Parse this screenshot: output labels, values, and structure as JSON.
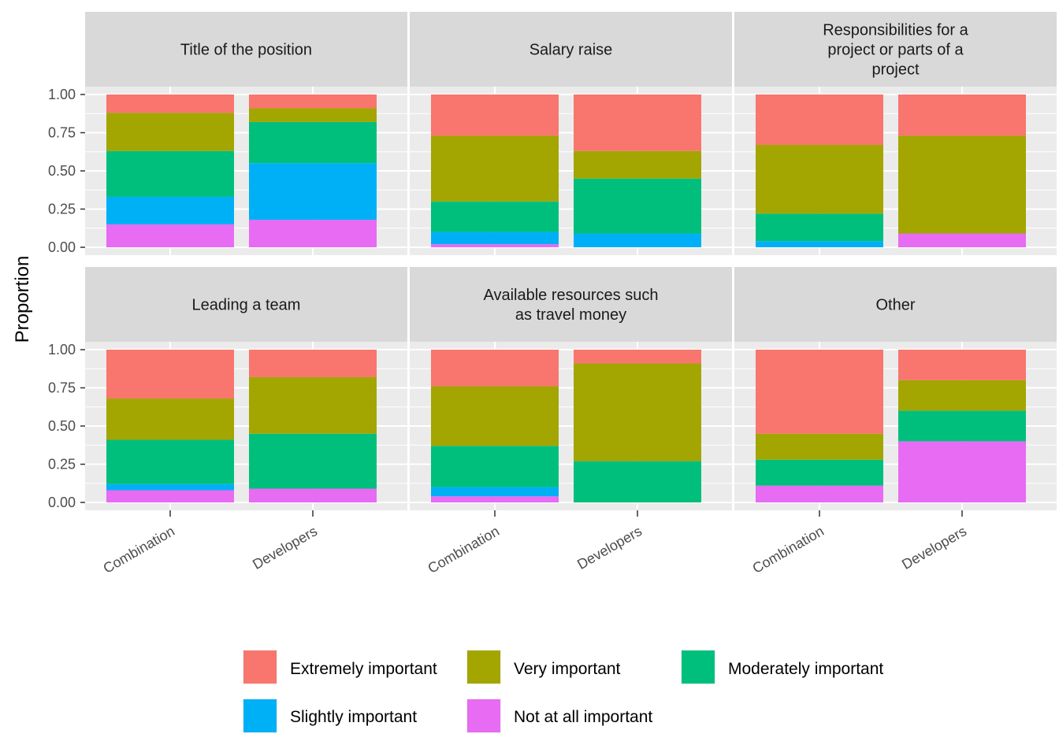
{
  "chart_data": {
    "type": "bar",
    "stacked": true,
    "ylabel": "Proportion",
    "xlabel": "",
    "ylim": [
      0,
      1
    ],
    "yticks": [
      "0.00",
      "0.25",
      "0.50",
      "0.75",
      "1.00"
    ],
    "categories": [
      "Combination",
      "Developers"
    ],
    "legend_position": "bottom",
    "legend_title": "",
    "levels": [
      {
        "name": "Extremely important",
        "color": "#F8766D"
      },
      {
        "name": "Very important",
        "color": "#A3A500"
      },
      {
        "name": "Moderately important",
        "color": "#00BF7D"
      },
      {
        "name": "Slightly important",
        "color": "#00B0F6"
      },
      {
        "name": "Not at all important",
        "color": "#E76BF3"
      }
    ],
    "panels": [
      {
        "title": [
          "Title of the position"
        ],
        "bars": [
          {
            "category": "Combination",
            "values": {
              "Not at all important": 0.15,
              "Slightly important": 0.18,
              "Moderately important": 0.3,
              "Very important": 0.25,
              "Extremely important": 0.12
            }
          },
          {
            "category": "Developers",
            "values": {
              "Not at all important": 0.18,
              "Slightly important": 0.37,
              "Moderately important": 0.27,
              "Very important": 0.09,
              "Extremely important": 0.09
            }
          }
        ]
      },
      {
        "title": [
          "Salary raise"
        ],
        "bars": [
          {
            "category": "Combination",
            "values": {
              "Not at all important": 0.02,
              "Slightly important": 0.08,
              "Moderately important": 0.2,
              "Very important": 0.43,
              "Extremely important": 0.27
            }
          },
          {
            "category": "Developers",
            "values": {
              "Not at all important": 0.0,
              "Slightly important": 0.09,
              "Moderately important": 0.36,
              "Very important": 0.18,
              "Extremely important": 0.37
            }
          }
        ]
      },
      {
        "title": [
          "Responsibilities for a",
          "project or parts of a",
          "project"
        ],
        "bars": [
          {
            "category": "Combination",
            "values": {
              "Not at all important": 0.0,
              "Slightly important": 0.04,
              "Moderately important": 0.18,
              "Very important": 0.45,
              "Extremely important": 0.33
            }
          },
          {
            "category": "Developers",
            "values": {
              "Not at all important": 0.09,
              "Slightly important": 0.0,
              "Moderately important": 0.0,
              "Very important": 0.64,
              "Extremely important": 0.27
            }
          }
        ]
      },
      {
        "title": [
          "Leading a team"
        ],
        "bars": [
          {
            "category": "Combination",
            "values": {
              "Not at all important": 0.08,
              "Slightly important": 0.04,
              "Moderately important": 0.29,
              "Very important": 0.27,
              "Extremely important": 0.32
            }
          },
          {
            "category": "Developers",
            "values": {
              "Not at all important": 0.09,
              "Slightly important": 0.0,
              "Moderately important": 0.36,
              "Very important": 0.37,
              "Extremely important": 0.18
            }
          }
        ]
      },
      {
        "title": [
          "Available resources such",
          "as travel money"
        ],
        "bars": [
          {
            "category": "Combination",
            "values": {
              "Not at all important": 0.04,
              "Slightly important": 0.06,
              "Moderately important": 0.27,
              "Very important": 0.39,
              "Extremely important": 0.24
            }
          },
          {
            "category": "Developers",
            "values": {
              "Not at all important": 0.0,
              "Slightly important": 0.0,
              "Moderately important": 0.27,
              "Very important": 0.64,
              "Extremely important": 0.09
            }
          }
        ]
      },
      {
        "title": [
          "Other"
        ],
        "bars": [
          {
            "category": "Combination",
            "values": {
              "Not at all important": 0.11,
              "Slightly important": 0.0,
              "Moderately important": 0.17,
              "Very important": 0.17,
              "Extremely important": 0.55
            }
          },
          {
            "category": "Developers",
            "values": {
              "Not at all important": 0.4,
              "Slightly important": 0.0,
              "Moderately important": 0.2,
              "Very important": 0.2,
              "Extremely important": 0.2
            }
          }
        ]
      }
    ]
  }
}
